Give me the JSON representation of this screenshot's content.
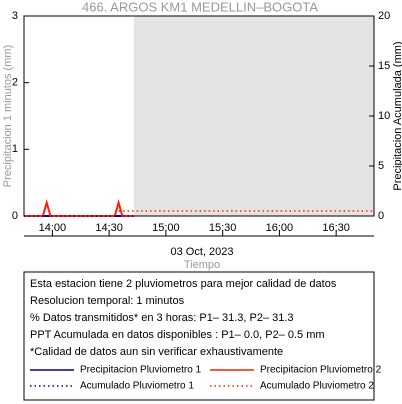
{
  "chart_data": {
    "type": "line",
    "title": "466. ARGOS KM1 MEDELLIN–BOGOTA",
    "x_label": "Tiempo",
    "date_label": "03 Oct, 2023",
    "y_label": "Precipitacion 1 minutos (mm)",
    "y2_label": "Precipitacion Acumulada (mm)",
    "xlim": [
      825,
      1010
    ],
    "xticks": [
      {
        "value": 840,
        "label": "14:00"
      },
      {
        "value": 870,
        "label": "14:30"
      },
      {
        "value": 900,
        "label": "15:00"
      },
      {
        "value": 930,
        "label": "15:30"
      },
      {
        "value": 960,
        "label": "16:00"
      },
      {
        "value": 990,
        "label": "16:30"
      }
    ],
    "ylim": [
      0,
      3
    ],
    "yticks": [
      0,
      1,
      2,
      3
    ],
    "y2lim": [
      0,
      20
    ],
    "y2ticks": [
      0,
      5,
      10,
      15,
      20
    ],
    "shaded_from": 883,
    "series": [
      {
        "name": "Precipitacion Pluviometro 1",
        "color": "#0000a0",
        "style": "solid",
        "x": [
          825,
          883
        ],
        "values": [
          0,
          0
        ]
      },
      {
        "name": "Precipitacion Pluviometro 2",
        "color": "#ff2000",
        "style": "solid",
        "x": [
          825,
          835,
          837,
          839,
          873,
          875,
          877,
          883
        ],
        "values": [
          0,
          0,
          0.2,
          0,
          0,
          0.2,
          0,
          0
        ]
      },
      {
        "name": "Acumulado Pluviometro 1",
        "color": "#0000a0",
        "style": "dotted",
        "axis": "y2",
        "x": [
          825,
          883
        ],
        "values": [
          0,
          0
        ]
      },
      {
        "name": "Acumulado Pluviometro 2",
        "color": "#ff2000",
        "style": "dotted",
        "axis": "y2",
        "x": [
          875,
          1010
        ],
        "values": [
          0.5,
          0.5
        ]
      }
    ],
    "notes": [
      "Esta estacion tiene 2 pluviometros para mejor calidad de datos",
      "Resolucion temporal: 1 minutos",
      "% Datos transmitidos* en 3 horas: P1– 31.3, P2– 31.3",
      "PPT Acumulada en datos disponibles : P1–  0.0, P2–  0.5 mm",
      "*Calidad de datos aun sin verificar exhaustivamente"
    ]
  }
}
